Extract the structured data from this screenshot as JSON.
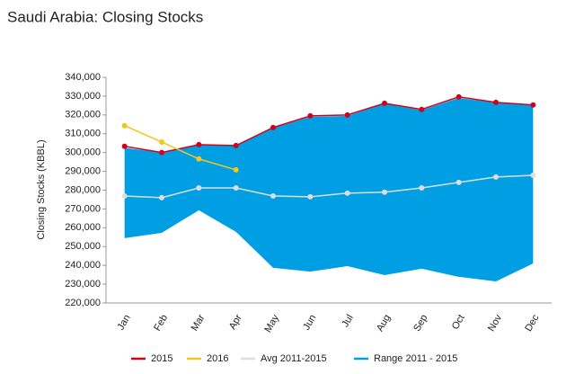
{
  "chart_data": {
    "type": "line",
    "title": "Saudi Arabia: Closing Stocks",
    "y_label": "Closing Stocks (KBBL)",
    "categories": [
      "Jan",
      "Feb",
      "Mar",
      "Apr",
      "May",
      "Jun",
      "Jul",
      "Aug",
      "Sep",
      "Oct",
      "Nov",
      "Dec"
    ],
    "range": {
      "name": "Range 2011 - 2015",
      "color": "#009fe3",
      "high": [
        302500,
        300000,
        304000,
        303500,
        313000,
        319000,
        319500,
        326000,
        322500,
        329000,
        326500,
        325000
      ],
      "low": [
        254500,
        257300,
        269300,
        257800,
        238700,
        236700,
        239600,
        234800,
        238200,
        233900,
        231500,
        241000
      ]
    },
    "series": [
      {
        "name": "2015",
        "color": "#d0021b",
        "values": [
          303300,
          300000,
          304200,
          303700,
          313300,
          319500,
          320000,
          326200,
          322900,
          329600,
          326700,
          325300
        ]
      },
      {
        "name": "2016",
        "color": "#f5c518",
        "values": [
          314300,
          305600,
          296600,
          290800,
          null,
          null,
          null,
          null,
          null,
          null,
          null,
          null
        ]
      },
      {
        "name": "Avg 2011-2015",
        "color": "#dddddd",
        "values": [
          276900,
          276000,
          281200,
          281200,
          276900,
          276500,
          278400,
          278900,
          281200,
          284100,
          287000,
          287900
        ]
      }
    ],
    "ylim": [
      220000,
      340000
    ],
    "yticks": [
      {
        "value": 220000,
        "label": "220,000"
      },
      {
        "value": 230000,
        "label": "230,000"
      },
      {
        "value": 240000,
        "label": "240,000"
      },
      {
        "value": 250000,
        "label": "250,000"
      },
      {
        "value": 260000,
        "label": "260,000"
      },
      {
        "value": 270000,
        "label": "270,000"
      },
      {
        "value": 280000,
        "label": "280,000"
      },
      {
        "value": 290000,
        "label": "290,000"
      },
      {
        "value": 300000,
        "label": "300,000"
      },
      {
        "value": 310000,
        "label": "310,000"
      },
      {
        "value": 320000,
        "label": "320,000"
      },
      {
        "value": 330000,
        "label": "330,000"
      },
      {
        "value": 340000,
        "label": "340,000"
      }
    ],
    "grid": false
  }
}
